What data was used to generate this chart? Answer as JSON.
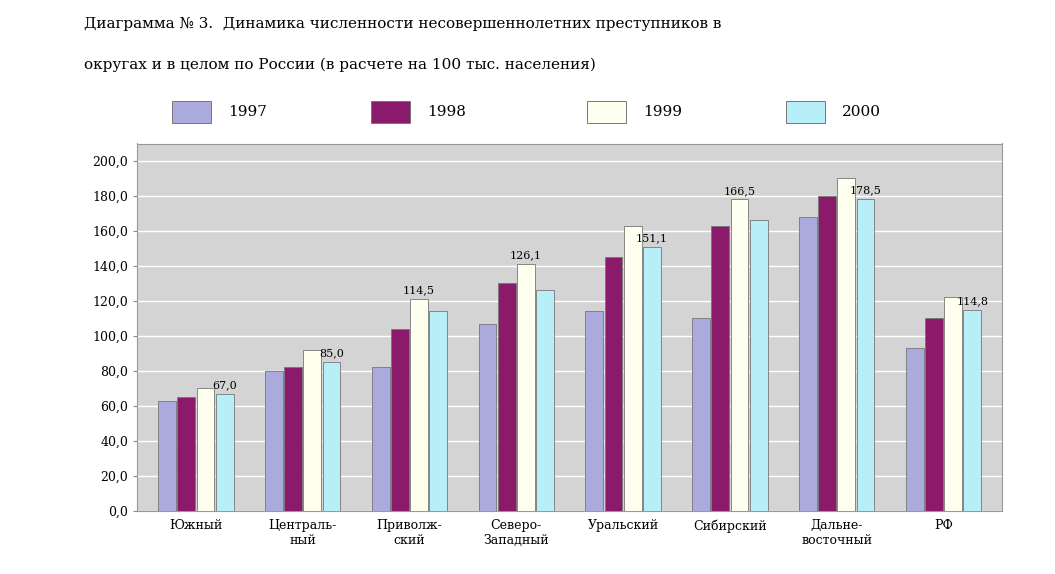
{
  "title_line1": "Диаграмма № 3.  Динамика численности несовершеннолетних преступников в",
  "title_line2": "округах и в целом по России (в расчете на 100 тыс. населения)",
  "categories": [
    "Южный",
    "Централь-\nный",
    "Приволж-\nский",
    "Северо-\nЗападный",
    "Уральский",
    "Сибирский",
    "Дальне-\nвосточный",
    "РФ"
  ],
  "years": [
    "1997",
    "1998",
    "1999",
    "2000"
  ],
  "data": {
    "1997": [
      63,
      80,
      82,
      107,
      114,
      110,
      168,
      93
    ],
    "1998": [
      65,
      82,
      104,
      130,
      145,
      163,
      180,
      110
    ],
    "1999": [
      70,
      92,
      121,
      141,
      163,
      178,
      190,
      122
    ],
    "2000": [
      67,
      85,
      114.5,
      126.1,
      151.1,
      166.5,
      178.5,
      114.8
    ]
  },
  "bar_colors": [
    "#aaaadd",
    "#8b1a6b",
    "#fffff0",
    "#b8eef8"
  ],
  "annotations": [
    [
      0,
      "2000",
      "67,0"
    ],
    [
      1,
      "2000",
      "85,0"
    ],
    [
      2,
      "1999",
      "114,5"
    ],
    [
      3,
      "1999",
      "126,1"
    ],
    [
      4,
      "2000",
      "151,1"
    ],
    [
      5,
      "1999",
      "166,5"
    ],
    [
      6,
      "2000",
      "178,5"
    ],
    [
      7,
      "2000",
      "114,8"
    ]
  ],
  "ylim": [
    0,
    210
  ],
  "yticks": [
    0,
    20,
    40,
    60,
    80,
    100,
    120,
    140,
    160,
    180,
    200
  ],
  "ytick_labels": [
    "0,0",
    "20,0",
    "40,0",
    "60,0",
    "80,0",
    "100,0",
    "120,0",
    "140,0",
    "160,0",
    "180,0",
    "200,0"
  ],
  "plot_bg_color": "#d4d4d4",
  "figsize": [
    10.55,
    5.74
  ],
  "dpi": 100
}
